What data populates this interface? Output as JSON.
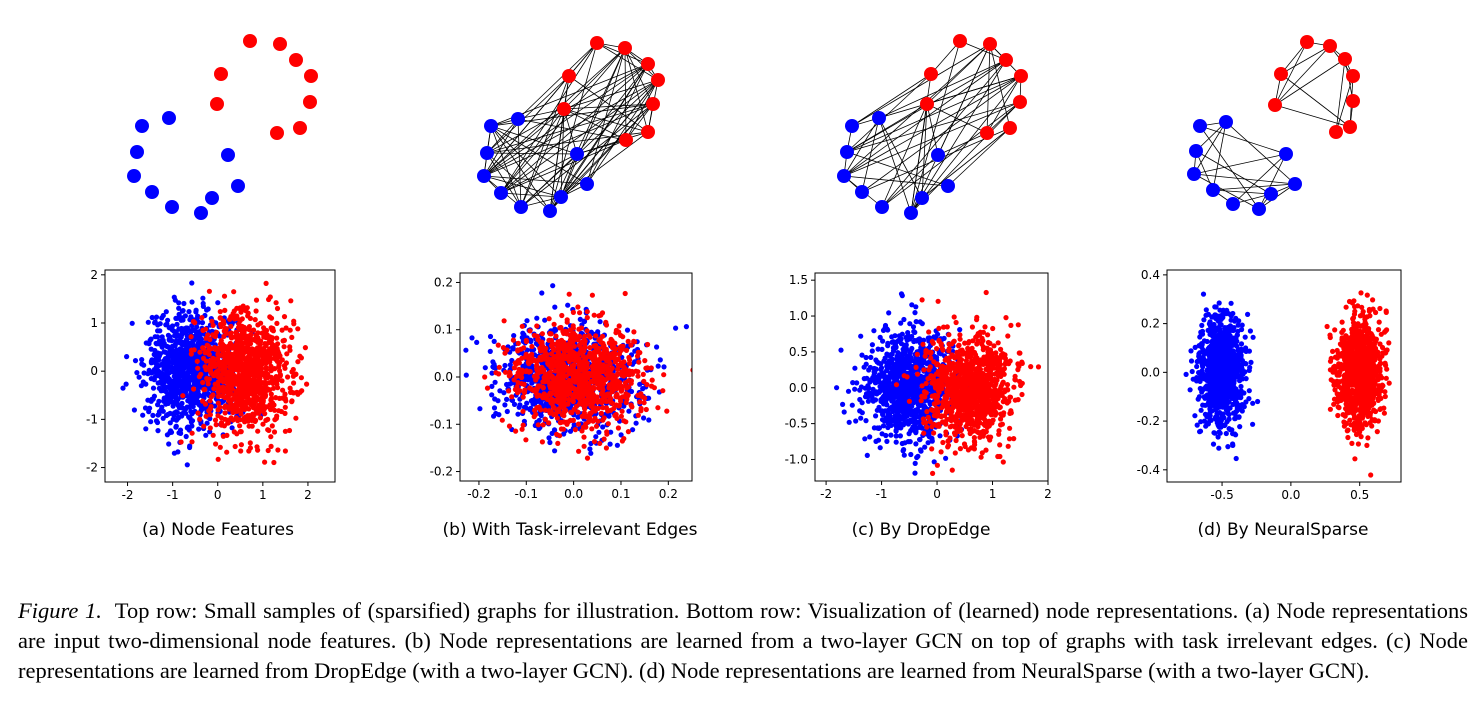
{
  "figure": {
    "caption_label": "Figure 1.",
    "caption_text": "Top row: Small samples of (sparsified) graphs for illustration. Bottom row: Visualization of (learned) node representations. (a) Node representations are input two-dimensional node features. (b) Node representations are learned from a two-layer GCN on top of graphs with task irrelevant edges. (c) Node representations are learned from DropEdge (with a two-layer GCN). (d) Node representations are learned from NeuralSparse (with a two-layer GCN)."
  },
  "colors": {
    "class_a": "#0000ff",
    "class_b": "#ff0000",
    "edge": "#000000"
  },
  "panels": [
    {
      "label": "(a) Node Features",
      "graph": {
        "edges": "none"
      },
      "chart_data": {
        "type": "scatter",
        "xlim": [
          -2.5,
          2.6
        ],
        "ylim": [
          -2.3,
          2.1
        ],
        "xticks": [
          "-2",
          "-1",
          "0",
          "1",
          "2"
        ],
        "xtick_values": [
          -2,
          -1,
          0,
          1,
          2
        ],
        "yticks": [
          "2",
          "1",
          "0",
          "-1",
          "-2"
        ],
        "ytick_values": [
          2,
          1,
          0,
          -1,
          -2
        ],
        "series": [
          {
            "color": "blue",
            "mean": [
              -0.6,
              0.0
            ],
            "spread": [
              0.5,
              0.6
            ],
            "n": 1000
          },
          {
            "color": "red",
            "mean": [
              0.6,
              0.0
            ],
            "spread": [
              0.5,
              0.6
            ],
            "n": 1000
          }
        ]
      }
    },
    {
      "label": "(b) With Task-irrelevant Edges",
      "graph": {
        "edges": "dense"
      },
      "chart_data": {
        "type": "scatter",
        "xlim": [
          -0.24,
          0.25
        ],
        "ylim": [
          -0.22,
          0.22
        ],
        "xticks": [
          "-0.2",
          "-0.1",
          "0.0",
          "0.1",
          "0.2"
        ],
        "xtick_values": [
          -0.2,
          -0.1,
          0.0,
          0.1,
          0.2
        ],
        "yticks": [
          "0.2",
          "0.1",
          "0.0",
          "-0.1",
          "-0.2"
        ],
        "ytick_values": [
          0.2,
          0.1,
          0.0,
          -0.1,
          -0.2
        ],
        "series": [
          {
            "color": "blue",
            "mean": [
              -0.01,
              0.0
            ],
            "spread": [
              0.07,
              0.055
            ],
            "n": 1000
          },
          {
            "color": "red",
            "mean": [
              0.01,
              0.0
            ],
            "spread": [
              0.07,
              0.055
            ],
            "n": 1000
          }
        ]
      }
    },
    {
      "label": "(c) By DropEdge",
      "graph": {
        "edges": "medium"
      },
      "chart_data": {
        "type": "scatter",
        "xlim": [
          -2.2,
          2.0
        ],
        "ylim": [
          -1.3,
          1.6
        ],
        "xticks": [
          "-2",
          "-1",
          "0",
          "1",
          "2"
        ],
        "xtick_values": [
          -2,
          -1,
          0,
          1,
          2
        ],
        "yticks": [
          "1.5",
          "1.0",
          "0.5",
          "0.0",
          "-0.5",
          "-1.0"
        ],
        "ytick_values": [
          1.5,
          1.0,
          0.5,
          0.0,
          -0.5,
          -1.0
        ],
        "series": [
          {
            "color": "blue",
            "mean": [
              -0.5,
              0.0
            ],
            "spread": [
              0.4,
              0.38
            ],
            "n": 1000
          },
          {
            "color": "red",
            "mean": [
              0.6,
              0.0
            ],
            "spread": [
              0.4,
              0.38
            ],
            "n": 1000
          }
        ]
      }
    },
    {
      "label": "(d) By NeuralSparse",
      "graph": {
        "edges": "split"
      },
      "chart_data": {
        "type": "scatter",
        "xlim": [
          -0.9,
          0.8
        ],
        "ylim": [
          -0.45,
          0.42
        ],
        "xticks": [
          "-0.5",
          "0.0",
          "0.5"
        ],
        "xtick_values": [
          -0.5,
          0.0,
          0.5
        ],
        "yticks": [
          "0.4",
          "0.2",
          "0.0",
          "-0.2",
          "-0.4"
        ],
        "ytick_values": [
          0.4,
          0.2,
          0.0,
          -0.2,
          -0.4
        ],
        "series": [
          {
            "color": "blue",
            "mean": [
              -0.5,
              0.0
            ],
            "spread": [
              0.08,
              0.11
            ],
            "n": 1000
          },
          {
            "color": "red",
            "mean": [
              0.5,
              0.0
            ],
            "spread": [
              0.08,
              0.11
            ],
            "n": 1000
          }
        ]
      }
    }
  ]
}
